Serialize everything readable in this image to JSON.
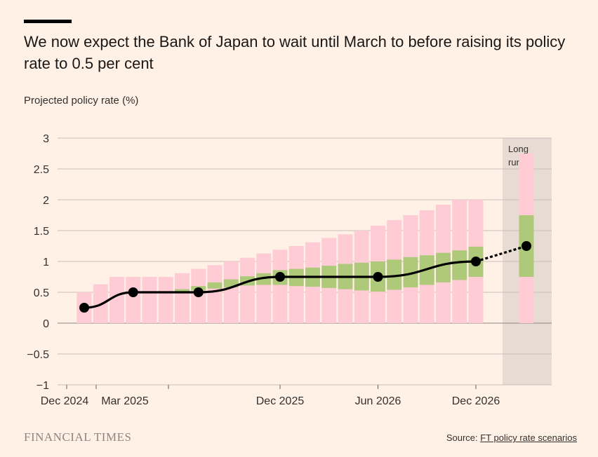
{
  "header": {
    "title": "We now expect the Bank of Japan to wait until March to before raising its policy rate to 0.5 per cent",
    "subtitle": "Projected policy rate (%)"
  },
  "footer": {
    "brand": "FINANCIAL TIMES",
    "source_prefix": "Source: ",
    "source_link": "FT policy rate scenarios"
  },
  "colors": {
    "background": "#FFF1E5",
    "range_outer": "#FFCCD6",
    "range_inner": "#AFC97A",
    "longrun_band": "#E7DBD3",
    "line": "#000000",
    "grid": "#C9BFB8"
  },
  "chart_data": {
    "type": "line",
    "title": "We now expect the Bank of Japan to wait until March to before raising its policy rate to 0.5 per cent",
    "ylabel": "Projected policy rate (%)",
    "ylim": [
      -1,
      3
    ],
    "yticks": [
      3,
      2.5,
      2,
      1.5,
      1,
      0.5,
      0,
      -0.5,
      -1
    ],
    "x_tick_labels": [
      "Dec 2024",
      "Mar 2025",
      "Dec 2025",
      "Jun 2026",
      "Dec 2026"
    ],
    "longrun_label": [
      "Long",
      "run"
    ],
    "periods": [
      "Dec 2024",
      "Jan 2025",
      "Feb 2025",
      "Mar 2025",
      "Apr 2025",
      "May 2025",
      "Jun 2025",
      "Jul 2025",
      "Aug 2025",
      "Sep 2025",
      "Oct 2025",
      "Nov 2025",
      "Dec 2025",
      "Jan 2026",
      "Feb 2026",
      "Mar 2026",
      "Apr 2026",
      "May 2026",
      "Jun 2026",
      "Jul 2026",
      "Aug 2026",
      "Sep 2026",
      "Oct 2026",
      "Nov 2026",
      "Dec 2026"
    ],
    "outer_low": [
      0,
      0,
      0,
      0,
      0,
      0,
      0,
      0,
      0,
      0,
      0,
      0,
      0,
      0,
      0,
      0,
      0,
      0,
      0,
      0,
      0,
      0,
      0,
      0,
      0
    ],
    "outer_high": [
      0.5,
      0.63,
      0.75,
      0.75,
      0.75,
      0.75,
      0.81,
      0.88,
      0.94,
      1.0,
      1.06,
      1.13,
      1.19,
      1.25,
      1.31,
      1.38,
      1.44,
      1.5,
      1.58,
      1.67,
      1.75,
      1.83,
      1.92,
      2.0,
      2.0
    ],
    "inner_low": [
      null,
      null,
      null,
      null,
      null,
      null,
      0.5,
      0.53,
      0.56,
      0.58,
      0.61,
      0.62,
      0.62,
      0.6,
      0.59,
      0.57,
      0.55,
      0.53,
      0.51,
      0.54,
      0.58,
      0.62,
      0.66,
      0.7,
      0.75
    ],
    "inner_high": [
      null,
      null,
      null,
      null,
      null,
      null,
      0.55,
      0.6,
      0.66,
      0.71,
      0.76,
      0.81,
      0.86,
      0.88,
      0.9,
      0.93,
      0.96,
      0.98,
      1.0,
      1.03,
      1.07,
      1.1,
      1.14,
      1.18,
      1.24
    ],
    "central_points": [
      {
        "period": "Dec 2024",
        "value": 0.25
      },
      {
        "period": "Mar 2025",
        "value": 0.5
      },
      {
        "period": "Jul 2025",
        "value": 0.5
      },
      {
        "period": "Dec 2025",
        "value": 0.75
      },
      {
        "period": "Jun 2026",
        "value": 0.75
      },
      {
        "period": "Dec 2026",
        "value": 1.0
      }
    ],
    "long_run": {
      "outer_low": 0,
      "outer_high": 2.75,
      "inner_low": 0.75,
      "inner_high": 1.75,
      "central": 1.25
    }
  }
}
